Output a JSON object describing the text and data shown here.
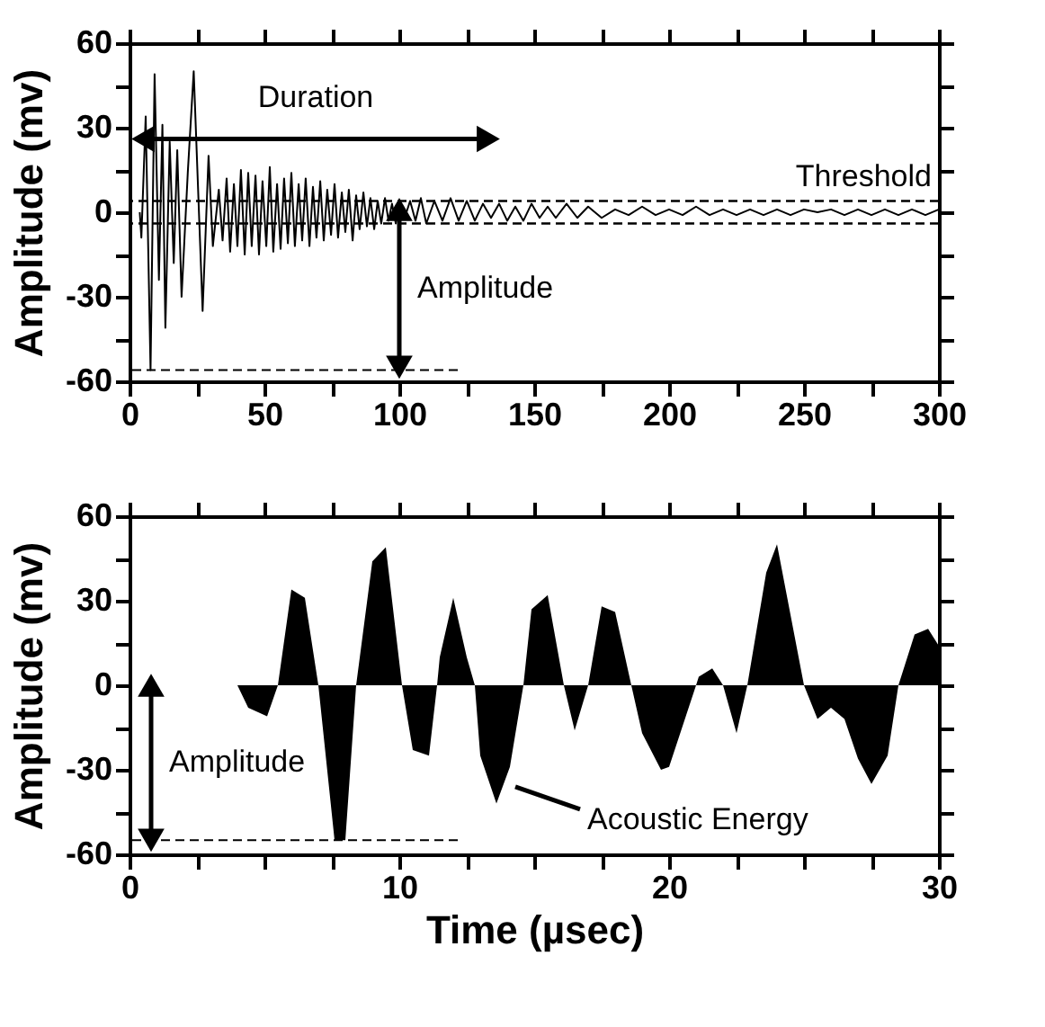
{
  "chart_data": [
    {
      "type": "line",
      "ylabel": "Amplitude (mv)",
      "xlim": [
        0,
        300
      ],
      "ylim": [
        -60,
        60
      ],
      "xticks": [
        0,
        {
          "value": 25,
          "label": null
        },
        50,
        {
          "value": 75,
          "label": null
        },
        100,
        {
          "value": 125,
          "label": null
        },
        150,
        {
          "value": 175,
          "label": null
        },
        200,
        {
          "value": 225,
          "label": null
        },
        250,
        {
          "value": 275,
          "label": null
        },
        300
      ],
      "yticks": [
        -60,
        {
          "value": -45,
          "label": null
        },
        -30,
        {
          "value": -15,
          "label": null
        },
        0,
        {
          "value": 15,
          "label": null
        },
        30,
        {
          "value": 45,
          "label": null
        },
        60
      ],
      "grid": false,
      "series": [
        {
          "color": "#000000",
          "line_style": "solid",
          "x": [
            3.8,
            4.4,
            6,
            7.8,
            9.3,
            10.9,
            12.2,
            13.3,
            14.9,
            16.4,
            17.7,
            19.3,
            21.6,
            23.8,
            27.1,
            29.3,
            30.9,
            33.1,
            34.5,
            36,
            37.3,
            38.7,
            40,
            41.3,
            42.7,
            44,
            45.3,
            46.7,
            48,
            49.3,
            50.7,
            52,
            53.3,
            54.7,
            56,
            57.3,
            58.7,
            60,
            61.3,
            62.7,
            64,
            65.3,
            66.7,
            68,
            69.3,
            70.7,
            72,
            73.3,
            74.7,
            76,
            77.3,
            78.7,
            80,
            81.3,
            82.7,
            84,
            85.3,
            86.7,
            88,
            89.3,
            90.7,
            92,
            93.3,
            94.7,
            96,
            97.3,
            98.7,
            100,
            102,
            104,
            106,
            108,
            110,
            113,
            116,
            119,
            122,
            125,
            128,
            131,
            134,
            137,
            140,
            143,
            146,
            149,
            152,
            155,
            158,
            162,
            166,
            170,
            175,
            180,
            185,
            190,
            195,
            200,
            205,
            210,
            215,
            220,
            225,
            230,
            235,
            240,
            245,
            250,
            255,
            260,
            265,
            270,
            275,
            280,
            285,
            290,
            295,
            300
          ],
          "values": [
            0,
            -9,
            34,
            -56,
            49,
            -24,
            31,
            -41,
            25,
            -18,
            22,
            -30,
            14,
            50,
            -35,
            20,
            -12,
            8,
            -10,
            12,
            -14,
            10,
            -12,
            15,
            -15,
            14,
            -12,
            13,
            -15,
            11,
            -12,
            16,
            -14,
            10,
            -13,
            12,
            -11,
            14,
            -12,
            10,
            -10,
            12,
            -12,
            9,
            -9,
            11,
            -10,
            8,
            -8,
            10,
            -9,
            7,
            -7,
            8,
            -10,
            6,
            -6,
            7,
            -5,
            5,
            -6,
            4,
            -4,
            5,
            -3,
            3,
            -4,
            3,
            -2,
            4,
            -3,
            5,
            -4,
            4,
            -3,
            5,
            -3,
            4,
            -3,
            3,
            -2,
            3,
            -3,
            2,
            -3,
            3,
            -2,
            2,
            -2,
            3,
            -2,
            2,
            -2,
            1,
            -1,
            2,
            -1,
            1,
            -1,
            2,
            -1,
            1,
            -1,
            1,
            -1,
            1,
            -1,
            1,
            0,
            1,
            -1,
            1,
            -1,
            1,
            -1,
            1,
            -1,
            1
          ]
        },
        {
          "type": "line",
          "color": "#000000",
          "line_style": "dashed",
          "x": [
            1,
            123
          ],
          "values": [
            -56,
            -56
          ]
        },
        {
          "type": "line",
          "color": "#000000",
          "line_style": "solid",
          "marker": "triangle",
          "x": [
            5,
            133
          ],
          "values": [
            26,
            26
          ]
        },
        {
          "type": "line",
          "color": "#000000",
          "line_style": "solid",
          "marker": "triangle",
          "x": [
            100,
            100
          ],
          "values": [
            1,
            -55
          ]
        }
      ],
      "ref_lines": [
        {
          "axis": "y",
          "value": 4,
          "label": "Threshold",
          "line_style": "dashed",
          "color": "#000000"
        },
        {
          "axis": "y",
          "value": -4,
          "line_style": "dashed",
          "color": "#000000"
        }
      ],
      "annotations": [
        "Duration",
        "Amplitude"
      ]
    },
    {
      "type": "area",
      "xlabel": "Time (µsec)",
      "ylabel": "Amplitude (mv)",
      "xlim": [
        0,
        30
      ],
      "ylim": [
        -60,
        60
      ],
      "xticks": [
        0,
        {
          "value": 2.5,
          "label": null
        },
        {
          "value": 5,
          "label": null
        },
        {
          "value": 7.5,
          "label": null
        },
        10,
        {
          "value": 12.5,
          "label": null
        },
        {
          "value": 15,
          "label": null
        },
        {
          "value": 17.5,
          "label": null
        },
        20,
        {
          "value": 22.5,
          "label": null
        },
        {
          "value": 25,
          "label": null
        },
        {
          "value": 27.5,
          "label": null
        },
        30
      ],
      "yticks": [
        -60,
        {
          "value": -45,
          "label": null
        },
        -30,
        {
          "value": -15,
          "label": null
        },
        0,
        {
          "value": 15,
          "label": null
        },
        30,
        {
          "value": 45,
          "label": null
        },
        60
      ],
      "grid": false,
      "series": [
        {
          "color": "#000000",
          "x": [
            3,
            4,
            4.4,
            5.1,
            5.5,
            6,
            6.5,
            7,
            7.6,
            8,
            8.4,
            9,
            9.5,
            10.1,
            10.5,
            11.1,
            11.4,
            11.5,
            12,
            12.5,
            12.8,
            13,
            13.6,
            14.1,
            14.6,
            14.9,
            15.5,
            16.1,
            16.5,
            17,
            17.5,
            18,
            18.6,
            19,
            19.7,
            20,
            21,
            21.1,
            21.6,
            22,
            22.5,
            22.9,
            23.6,
            24,
            25,
            25.5,
            26,
            26.5,
            27,
            27.5,
            28.1,
            28.5,
            29.1,
            29.6,
            30
          ],
          "values": [
            0,
            0,
            -8,
            -11,
            0,
            34,
            31,
            0,
            -55,
            -55,
            0,
            44,
            49,
            0,
            -23,
            -25,
            0,
            10,
            31,
            10,
            0,
            -25,
            -42,
            -29,
            0,
            27,
            32,
            0,
            -16,
            0,
            28,
            26,
            0,
            -17,
            -30,
            -29,
            0,
            3,
            6,
            0,
            -17,
            0,
            40,
            50,
            0,
            -12,
            -8,
            -12,
            -26,
            -35,
            -25,
            0,
            18,
            20,
            14
          ]
        },
        {
          "type": "line",
          "color": "#000000",
          "line_style": "dashed",
          "x": [
            0.1,
            12.2
          ],
          "values": [
            -55,
            -55
          ]
        },
        {
          "type": "line",
          "color": "#000000",
          "line_style": "solid",
          "marker": "triangle",
          "x": [
            0.8,
            0.8
          ],
          "values": [
            0,
            -55
          ]
        },
        {
          "type": "line",
          "color": "#000000",
          "line_style": "solid",
          "marker": "none",
          "x": [
            16.7,
            14.3
          ],
          "values": [
            -44,
            -36
          ]
        }
      ],
      "annotations": [
        "Amplitude",
        "Acoustic Energy"
      ]
    }
  ]
}
